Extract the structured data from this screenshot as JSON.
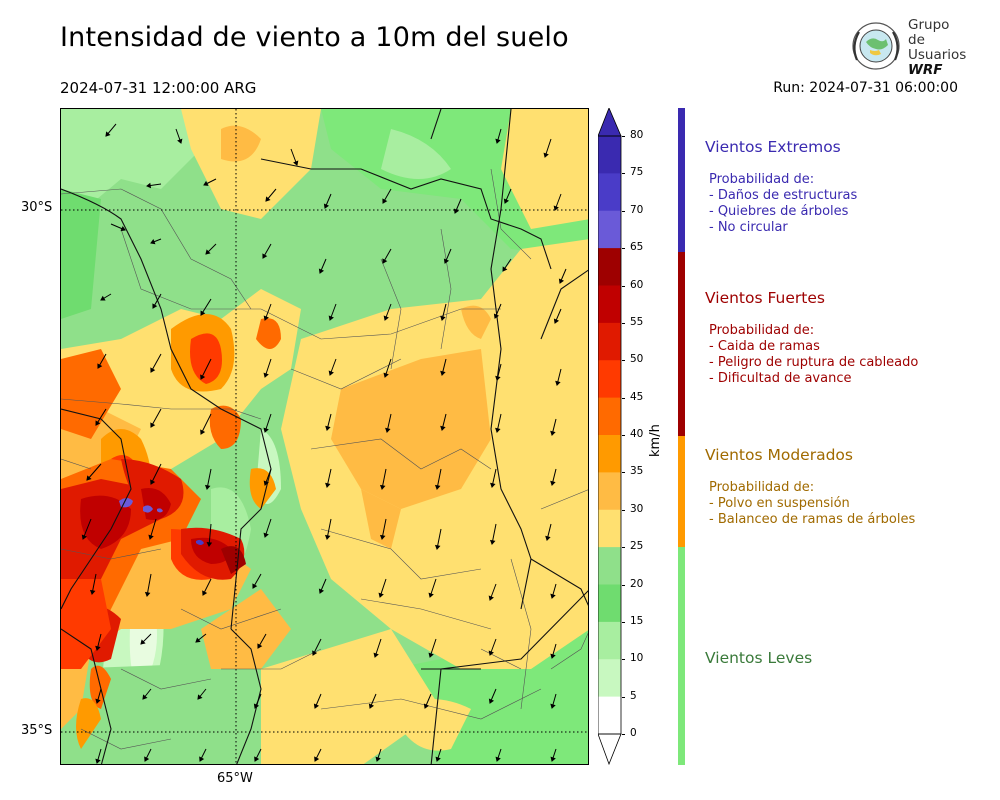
{
  "title": "Intensidad de viento a 10m del suelo",
  "valid_time": "2024-07-31 12:00:00 ARG",
  "run_time": "Run: 2024-07-31 06:00:00",
  "logo": {
    "line1": "Grupo de",
    "line2": "Usuarios",
    "line3": "WRF",
    "icon": "globe-seal-icon"
  },
  "axes": {
    "lat_labels": [
      "30°S",
      "35°S"
    ],
    "lon_labels": [
      "65°W"
    ]
  },
  "colorbar": {
    "unit": "km/h",
    "ticks": [
      "80",
      "75",
      "70",
      "65",
      "60",
      "55",
      "50",
      "45",
      "40",
      "35",
      "30",
      "25",
      "20",
      "15",
      "10",
      "5",
      "0"
    ],
    "colors": [
      "#3a2ab0",
      "#4a3cc8",
      "#6a5ad8",
      "#9e0000",
      "#c00000",
      "#e01a00",
      "#ff3a00",
      "#ff6a00",
      "#ff9a00",
      "#ffbb44",
      "#ffe070",
      "#8fe08a",
      "#6fdc6f",
      "#a8eea0",
      "#c8f8c0",
      "#ffffff"
    ],
    "extend_top_color": "#3a2ab0"
  },
  "categories": [
    {
      "title": "Vientos Extremos",
      "color": "#3a2ab0",
      "lines": [
        "Probabilidad de:",
        "- Daños de estructuras",
        "- Quiebres de árboles",
        "- No circular"
      ]
    },
    {
      "title": "Vientos Fuertes",
      "color": "#9e0000",
      "lines": [
        "Probabilidad de:",
        "- Caida de ramas",
        "- Peligro de ruptura de cableado",
        "- Dificultad de avance"
      ]
    },
    {
      "title": "Vientos Moderados",
      "color": "#a06a00",
      "bar_color": "#ff9a00",
      "lines": [
        "Probabilidad de:",
        "- Polvo en suspensión",
        "- Balanceo de ramas de árboles"
      ]
    },
    {
      "title": "Vientos Leves",
      "color": "#3a7a3a",
      "bar_color": "#7ee87a",
      "lines": []
    }
  ],
  "map": {
    "region": "Argentina central-norte",
    "field": "wind speed 10m",
    "palette": {
      "leve": "#8fe08a",
      "leve_dark": "#6fdc6f",
      "moderado": "#ffe070",
      "moderado2": "#ffbb44",
      "fuerte": "#ff6a00",
      "fuerte2": "#e01a00",
      "extremo": "#6a5ad8"
    }
  }
}
